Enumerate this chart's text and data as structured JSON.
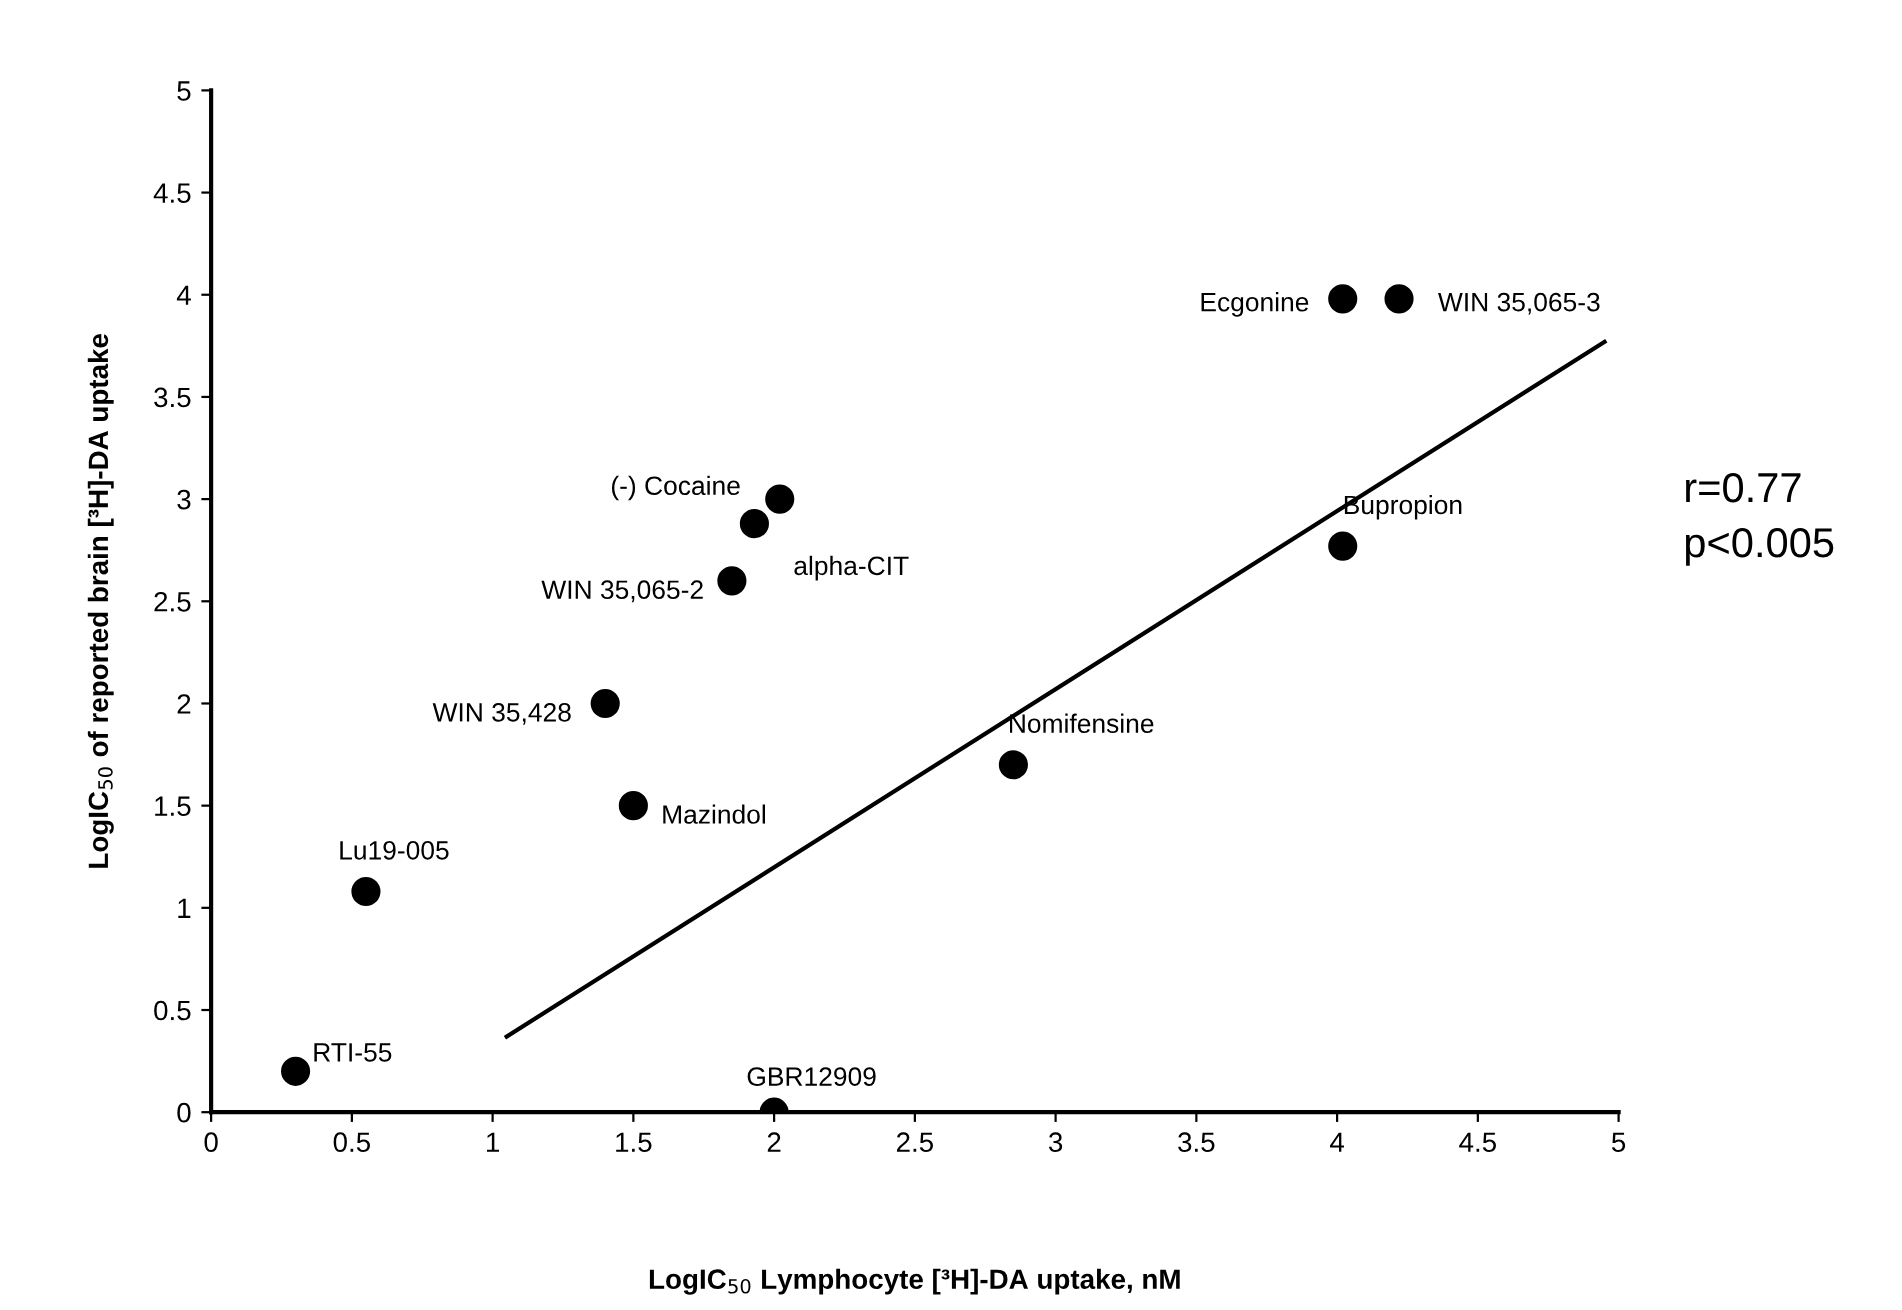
{
  "chart_data": {
    "type": "scatter",
    "xlabel": "LogIC$_{50}$ Lymphocyte [³H]-DA uptake, nM",
    "ylabel": "LogIC$_{50}$ of reported brain [³H]-DA uptake",
    "xlim": [
      0,
      5
    ],
    "ylim": [
      0,
      5
    ],
    "xticks": [
      0,
      0.5,
      1,
      1.5,
      2,
      2.5,
      3,
      3.5,
      4,
      4.5,
      5
    ],
    "yticks": [
      0,
      0.5,
      1,
      1.5,
      2,
      2.5,
      3,
      3.5,
      4,
      4.5,
      5
    ],
    "grid": false,
    "marker": "circle",
    "series": [
      {
        "color": "#000000",
        "x": [
          0.3,
          0.55,
          1.5,
          1.4,
          1.85,
          1.93,
          2.02,
          2.0,
          2.85,
          4.02,
          4.02,
          4.22
        ],
        "values": [
          0.2,
          1.08,
          1.5,
          2.0,
          2.6,
          2.88,
          3.0,
          0,
          1.7,
          2.77,
          3.98,
          3.98
        ]
      },
      {
        "type": "line",
        "color": "#000000",
        "x": [
          1.05,
          4.95
        ],
        "values": [
          0.37,
          3.77
        ],
        "marker": "none",
        "line_style": "solid"
      }
    ],
    "annotations": [
      {
        "text": "RTI-55",
        "x": 0.3,
        "y": 0.2
      },
      {
        "text": "Lu19-005",
        "x": 0.55,
        "y": 1.08
      },
      {
        "text": "Mazindol",
        "x": 1.5,
        "y": 1.5
      },
      {
        "text": "WIN 35,428",
        "x": 1.4,
        "y": 2.0
      },
      {
        "text": "WIN 35,065-2",
        "x": 1.85,
        "y": 2.6
      },
      {
        "text": "alpha-CIT",
        "x": 1.93,
        "y": 2.88
      },
      {
        "text": "(-) Cocaine",
        "x": 2.02,
        "y": 3.0
      },
      {
        "text": "GBR12909",
        "x": 2.0,
        "y": 0
      },
      {
        "text": "Nomifensine",
        "x": 2.85,
        "y": 1.7
      },
      {
        "text": "Bupropion",
        "x": 4.02,
        "y": 2.77
      },
      {
        "text": "Ecgonine",
        "x": 4.02,
        "y": 3.98
      },
      {
        "text": "WIN 35,065-3",
        "x": 4.22,
        "y": 3.98
      },
      "r=0.77",
      "p<0.005"
    ]
  }
}
